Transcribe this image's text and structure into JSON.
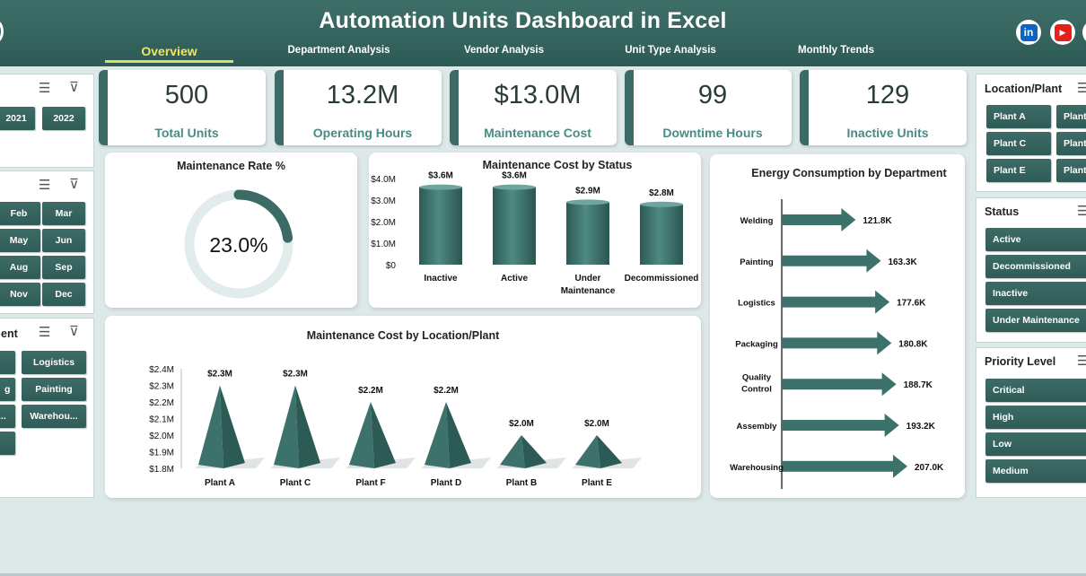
{
  "header": {
    "title": "Automation Units Dashboard in Excel",
    "tabs": [
      {
        "label": "Overview",
        "active": true
      },
      {
        "label": "Department Analysis"
      },
      {
        "label": "Vendor Analysis"
      },
      {
        "label": "Unit Type Analysis"
      },
      {
        "label": "Monthly Trends"
      }
    ],
    "social": [
      {
        "label": "in",
        "icon": "linkedin-icon",
        "color": "#0a66c2"
      },
      {
        "label": "▶",
        "icon": "youtube-icon",
        "color": "#e62117"
      }
    ]
  },
  "left_slicers": {
    "year": {
      "buttons": [
        "2021",
        "2022"
      ]
    },
    "month": {
      "buttons": [
        "Feb",
        "Mar",
        "May",
        "Jun",
        "Aug",
        "Sep",
        "Nov",
        "Dec"
      ]
    },
    "department": {
      "title": "ent",
      "buttons": [
        "Logistics",
        "g",
        "Painting",
        "...",
        "Warehou..."
      ]
    }
  },
  "kpis": [
    {
      "value": "500",
      "label": "Total Units"
    },
    {
      "value": "13.2M",
      "label": "Operating Hours"
    },
    {
      "value": "$13.0M",
      "label": "Maintenance Cost"
    },
    {
      "value": "99",
      "label": "Downtime Hours"
    },
    {
      "value": "129",
      "label": "Inactive Units"
    }
  ],
  "maintenance_rate": {
    "title": "Maintenance Rate %",
    "value_label": "23.0%",
    "value": 0.23
  },
  "right_slicers": {
    "location": {
      "title": "Location/Plant",
      "buttons": [
        "Plant A",
        "Plant",
        "Plant C",
        "Plant",
        "Plant E",
        "Plant"
      ]
    },
    "status": {
      "title": "Status",
      "buttons": [
        "Active",
        "Decommissioned",
        "Inactive",
        "Under Maintenance"
      ]
    },
    "priority": {
      "title": "Priority Level",
      "buttons": [
        "Critical",
        "High",
        "Low",
        "Medium"
      ]
    }
  },
  "chart_data": [
    {
      "type": "bar",
      "title": "Maintenance Cost by Status",
      "categories": [
        "Inactive",
        "Active",
        "Under Maintenance",
        "Decommissioned"
      ],
      "values": [
        3.6,
        3.6,
        2.9,
        2.8
      ],
      "data_labels": [
        "$3.6M",
        "$3.6M",
        "$2.9M",
        "$2.8M"
      ],
      "yticks": [
        "$0",
        "$1.0M",
        "$2.0M",
        "$3.0M",
        "$4.0M"
      ],
      "ylim": [
        0,
        4.0
      ]
    },
    {
      "type": "bar",
      "title": "Maintenance Cost by Location/Plant",
      "categories": [
        "Plant A",
        "Plant C",
        "Plant F",
        "Plant D",
        "Plant B",
        "Plant E"
      ],
      "values": [
        2.3,
        2.3,
        2.2,
        2.2,
        2.0,
        2.0
      ],
      "data_labels": [
        "$2.3M",
        "$2.3M",
        "$2.2M",
        "$2.2M",
        "$2.0M",
        "$2.0M"
      ],
      "yticks": [
        "$1.8M",
        "$1.9M",
        "$2.0M",
        "$2.1M",
        "$2.2M",
        "$2.3M",
        "$2.4M"
      ],
      "ylim": [
        1.8,
        2.4
      ]
    },
    {
      "type": "bar",
      "title": "Energy Consumption by Department",
      "categories": [
        "Welding",
        "Painting",
        "Logistics",
        "Packaging",
        "Quality Control",
        "Assembly",
        "Warehousing"
      ],
      "values": [
        121.8,
        163.3,
        177.6,
        180.8,
        188.7,
        193.2,
        207.0
      ],
      "data_labels": [
        "121.8K",
        "163.3K",
        "177.6K",
        "180.8K",
        "188.7K",
        "193.2K",
        "207.0K"
      ]
    }
  ],
  "colors": {
    "header": "#2d5a55",
    "accent": "#3c6b66",
    "kpi_label": "#4b8a83",
    "nav_active": "#f2e661"
  }
}
